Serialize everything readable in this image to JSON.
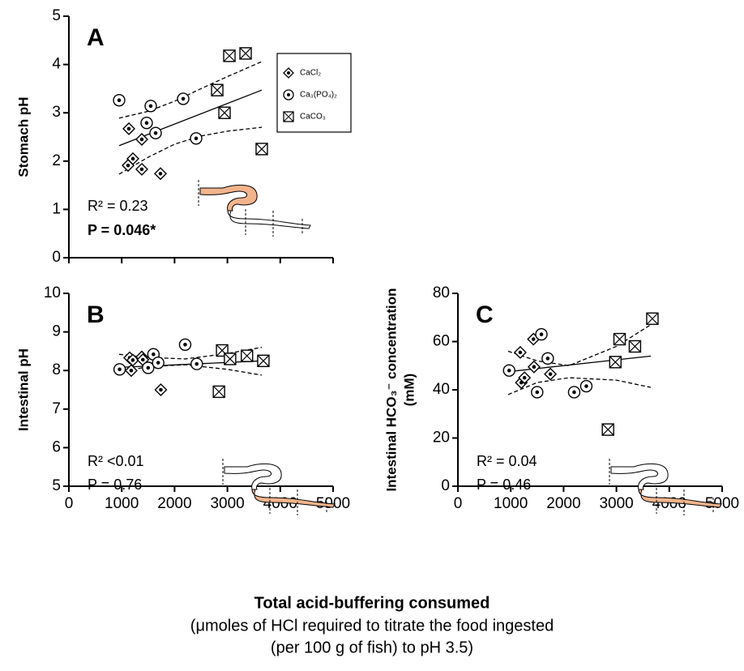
{
  "chart_data": [
    {
      "type": "scatter",
      "label": "A",
      "ylabel": "Stomach pH",
      "xlim": [
        0,
        5000
      ],
      "xticks": [
        0,
        1000,
        2000,
        3000,
        4000,
        5000
      ],
      "xtick_labels": false,
      "ylim": [
        0,
        5
      ],
      "yticks": [
        0,
        1,
        2,
        3,
        4,
        5
      ],
      "annotations": [
        "R² = 0.23",
        "P = 0.046*"
      ],
      "legend": "upper right",
      "highlight": "stomach",
      "series": [
        {
          "name": "CaCl₂",
          "marker": "diamond",
          "x": [
            1135,
            1212,
            1120,
            1380,
            1380,
            1733
          ],
          "values": [
            2.67,
            2.05,
            1.91,
            2.45,
            1.83,
            1.74
          ]
        },
        {
          "name": "Ca₃(PO₄)₂",
          "marker": "circle",
          "x": [
            951,
            1549,
            1472,
            1641,
            2163,
            2408
          ],
          "values": [
            3.26,
            3.14,
            2.79,
            2.58,
            3.29,
            2.47
          ]
        },
        {
          "name": "CaCO₃",
          "marker": "square",
          "x": [
            3037,
            3344,
            2807,
            2945,
            3650
          ],
          "values": [
            4.18,
            4.23,
            3.47,
            3.0,
            2.25
          ]
        }
      ],
      "lines": [
        {
          "style": "solid",
          "x": [
            950,
            3650
          ],
          "values": [
            2.32,
            3.47
          ]
        },
        {
          "style": "dashed",
          "x": [
            950,
            1500,
            2000,
            2500,
            3000,
            3650
          ],
          "values": [
            2.89,
            3.03,
            3.24,
            3.5,
            3.75,
            4.06
          ]
        },
        {
          "style": "dashed",
          "x": [
            950,
            1500,
            2000,
            2500,
            3000,
            3650
          ],
          "values": [
            1.73,
            2.08,
            2.35,
            2.52,
            2.62,
            2.7
          ]
        }
      ]
    },
    {
      "type": "scatter",
      "label": "B",
      "ylabel": "Intestinal pH",
      "xlim": [
        0,
        5000
      ],
      "xticks": [
        0,
        1000,
        2000,
        3000,
        4000,
        5000
      ],
      "xtick_labels": true,
      "ylim": [
        5,
        10
      ],
      "yticks": [
        5,
        6,
        7,
        8,
        9,
        10
      ],
      "annotations": [
        "R² <0.01",
        "P = 0.76"
      ],
      "highlight": "intestine",
      "series": [
        {
          "name": "CaCl₂",
          "marker": "diamond",
          "x": [
            1150,
            1210,
            1180,
            1380,
            1400,
            1740
          ],
          "values": [
            8.33,
            8.27,
            8.0,
            8.35,
            8.28,
            7.5
          ]
        },
        {
          "name": "Ca₃(PO₄)₂",
          "marker": "circle",
          "x": [
            960,
            1500,
            1600,
            1690,
            2200,
            2420
          ],
          "values": [
            8.03,
            8.07,
            8.42,
            8.2,
            8.67,
            8.17
          ]
        },
        {
          "name": "CaCO₃",
          "marker": "square",
          "x": [
            2900,
            3370,
            3050,
            3680,
            2840
          ],
          "values": [
            8.52,
            8.38,
            8.3,
            8.25,
            7.45
          ]
        }
      ],
      "lines": [
        {
          "style": "solid",
          "x": [
            950,
            3650
          ],
          "values": [
            8.08,
            8.25
          ]
        },
        {
          "style": "dashed",
          "x": [
            950,
            1500,
            2200,
            3000,
            3650
          ],
          "values": [
            8.42,
            8.34,
            8.3,
            8.44,
            8.6
          ]
        },
        {
          "style": "dashed",
          "x": [
            950,
            1500,
            2200,
            3000,
            3650
          ],
          "values": [
            7.95,
            8.1,
            8.15,
            8.03,
            7.88
          ]
        }
      ]
    },
    {
      "type": "scatter",
      "label": "C",
      "ylabel": [
        "Intestinal HCO₃⁻ concentration",
        "(mM)"
      ],
      "xlim": [
        0,
        5000
      ],
      "xticks": [
        0,
        1000,
        2000,
        3000,
        4000,
        5000
      ],
      "xtick_labels": true,
      "ylim": [
        0,
        80
      ],
      "yticks": [
        0,
        20,
        40,
        60,
        80
      ],
      "annotations": [
        "R² = 0.04",
        "P = 0.46"
      ],
      "highlight": "intestine",
      "series": [
        {
          "name": "CaCl₂",
          "marker": "diamond",
          "x": [
            1180,
            1200,
            1260,
            1430,
            1440,
            1750
          ],
          "values": [
            55.5,
            43,
            45,
            61,
            49.5,
            46.5
          ]
        },
        {
          "name": "Ca₃(PO₄)₂",
          "marker": "circle",
          "x": [
            970,
            1580,
            1500,
            1700,
            2200,
            2430
          ],
          "values": [
            48,
            63,
            39,
            53,
            39,
            41.5
          ]
        },
        {
          "name": "CaCO₃",
          "marker": "square",
          "x": [
            3680,
            3060,
            3350,
            2980,
            2840
          ],
          "values": [
            69.5,
            61,
            58,
            51.5,
            23.5
          ]
        }
      ],
      "lines": [
        {
          "style": "solid",
          "x": [
            950,
            3650
          ],
          "values": [
            47.5,
            54
          ]
        },
        {
          "style": "dashed",
          "x": [
            950,
            1500,
            2100,
            3000,
            3650
          ],
          "values": [
            56,
            52,
            50,
            58,
            67
          ]
        },
        {
          "style": "dashed",
          "x": [
            950,
            1500,
            2100,
            3000,
            3650
          ],
          "values": [
            38,
            43,
            45,
            44,
            41
          ]
        }
      ]
    }
  ],
  "xlabel": [
    "Total acid-buffering consumed",
    "(μmoles of HCl required to titrate the food ingested",
    "(per 100 g of fish) to pH 3.5)"
  ]
}
